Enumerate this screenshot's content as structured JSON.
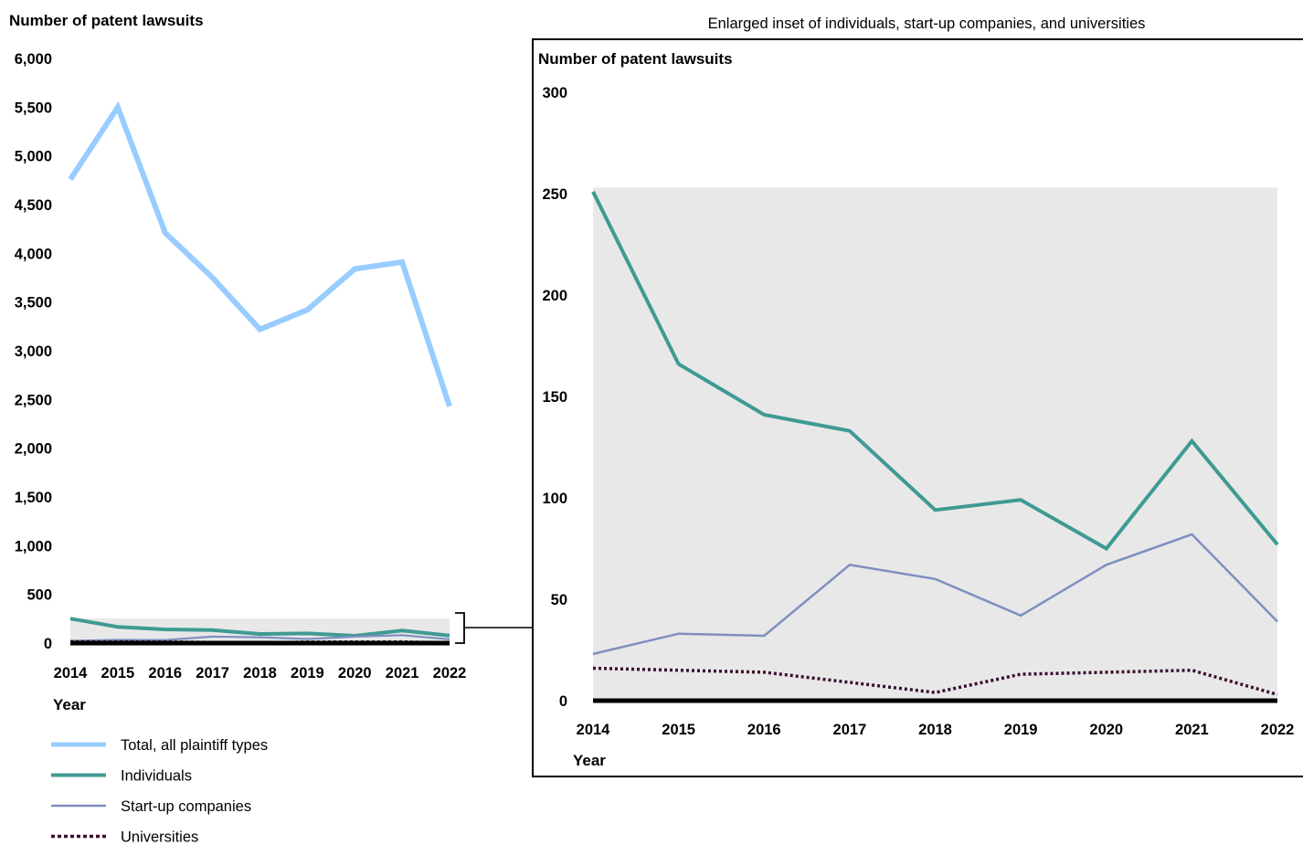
{
  "chart_data": [
    {
      "type": "line",
      "ylabel": "Number of patent lawsuits",
      "xlabel": "Year",
      "categories": [
        "2014",
        "2015",
        "2016",
        "2017",
        "2018",
        "2019",
        "2020",
        "2021",
        "2022"
      ],
      "ylim": [
        0,
        6000
      ],
      "yticks": [
        "0",
        "500",
        "1,000",
        "1,500",
        "2,000",
        "2,500",
        "3,000",
        "3,500",
        "4,000",
        "4,500",
        "5,000",
        "5,500",
        "6,000"
      ],
      "grid": false,
      "series": [
        {
          "name": "Total, all plaintiff types",
          "color": "#99ccff",
          "style": "solid-thick",
          "values": [
            4760,
            5500,
            4210,
            3750,
            3220,
            3420,
            3840,
            3910,
            2430
          ]
        },
        {
          "name": "Individuals",
          "color": "#3f9a93",
          "style": "solid",
          "values": [
            251,
            166,
            141,
            133,
            94,
            99,
            75,
            128,
            77
          ]
        },
        {
          "name": "Start-up companies",
          "color": "#7f8fc0",
          "style": "thin",
          "values": [
            23,
            33,
            32,
            67,
            60,
            42,
            67,
            82,
            39
          ]
        },
        {
          "name": "Universities",
          "color": "#3a0f2e",
          "style": "dotted",
          "values": [
            16,
            15,
            14,
            9,
            4,
            13,
            14,
            15,
            3
          ]
        }
      ],
      "legend": {
        "placement": "bottom-left",
        "items": [
          {
            "label": "Total, all plaintiff types",
            "color": "#99ccff",
            "style": "solid-thick"
          },
          {
            "label": "Individuals",
            "color": "#3f9a93",
            "style": "solid"
          },
          {
            "label": "Start-up companies",
            "color": "#7f8fc0",
            "style": "thin"
          },
          {
            "label": "Universities",
            "color": "#3a0f2e",
            "style": "dotted"
          }
        ]
      }
    },
    {
      "type": "line",
      "title": "Enlarged inset of individuals, start-up companies, and universities",
      "ylabel": "Number of patent lawsuits",
      "xlabel": "Year",
      "categories": [
        "2014",
        "2015",
        "2016",
        "2017",
        "2018",
        "2019",
        "2020",
        "2021",
        "2022"
      ],
      "ylim": [
        0,
        300
      ],
      "yticks": [
        "0",
        "50",
        "100",
        "150",
        "200",
        "250",
        "300"
      ],
      "grid": false,
      "shaded_band": [
        0,
        253
      ],
      "series": [
        {
          "name": "Individuals",
          "color": "#3f9a93",
          "style": "solid",
          "values": [
            251,
            166,
            141,
            133,
            94,
            99,
            75,
            128,
            77
          ]
        },
        {
          "name": "Start-up companies",
          "color": "#7f8fc0",
          "style": "thin",
          "values": [
            23,
            33,
            32,
            67,
            60,
            42,
            67,
            82,
            39
          ]
        },
        {
          "name": "Universities",
          "color": "#3a0f2e",
          "style": "dotted",
          "values": [
            16,
            15,
            14,
            9,
            4,
            13,
            14,
            15,
            3
          ]
        }
      ]
    }
  ]
}
